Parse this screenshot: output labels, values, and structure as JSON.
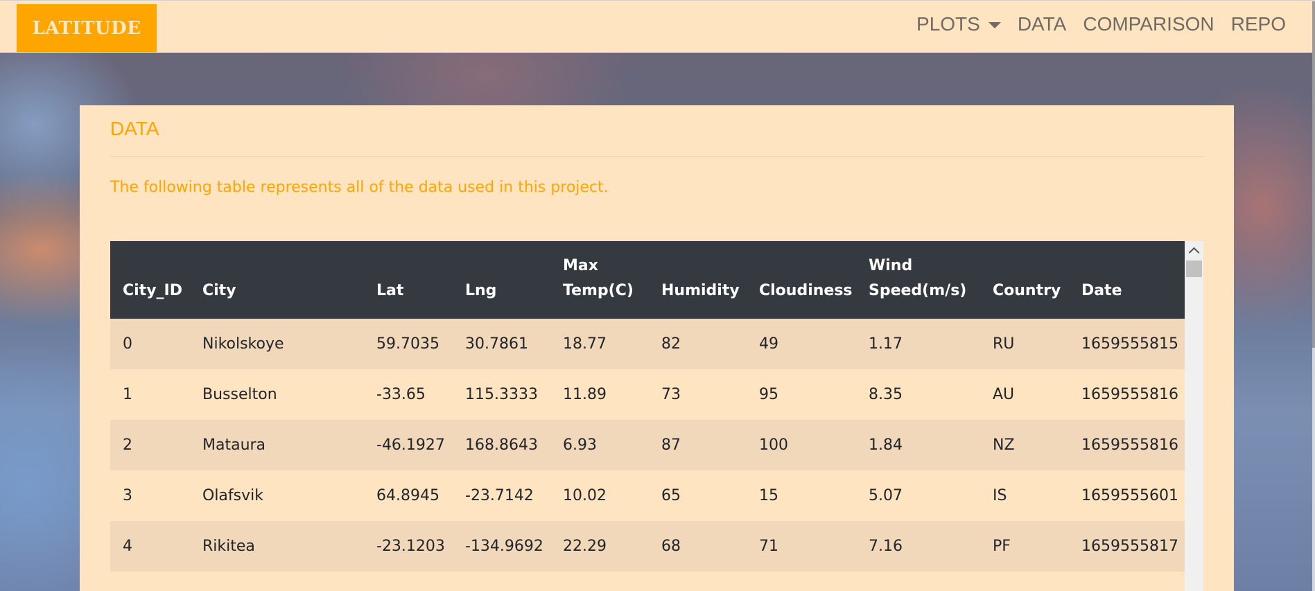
{
  "navbar": {
    "brand": "LATITUDE",
    "links": {
      "plots": "PLOTS",
      "data": "DATA",
      "comparison": "COMPARISON",
      "repo": "REPO"
    }
  },
  "card": {
    "title": "DATA",
    "description": "The following table represents all of the data used in this project."
  },
  "table": {
    "headers": {
      "city_id": "City_ID",
      "city": "City",
      "lat": "Lat",
      "lng": "Lng",
      "max_temp_1": "Max",
      "max_temp_2": "Temp(C)",
      "humidity": "Humidity",
      "cloudiness": "Cloudiness",
      "wind_1": "Wind",
      "wind_2": "Speed(m/s)",
      "country": "Country",
      "date": "Date"
    },
    "rows": [
      [
        "0",
        "Nikolskoye",
        "59.7035",
        "30.7861",
        "18.77",
        "82",
        "49",
        "1.17",
        "RU",
        "1659555815"
      ],
      [
        "1",
        "Busselton",
        "-33.65",
        "115.3333",
        "11.89",
        "73",
        "95",
        "8.35",
        "AU",
        "1659555816"
      ],
      [
        "2",
        "Mataura",
        "-46.1927",
        "168.8643",
        "6.93",
        "87",
        "100",
        "1.84",
        "NZ",
        "1659555816"
      ],
      [
        "3",
        "Olafsvik",
        "64.8945",
        "-23.7142",
        "10.02",
        "65",
        "15",
        "5.07",
        "IS",
        "1659555601"
      ],
      [
        "4",
        "Rikitea",
        "-23.1203",
        "-134.9692",
        "22.29",
        "68",
        "71",
        "7.16",
        "PF",
        "1659555817"
      ]
    ]
  },
  "colors": {
    "accent": "#ffa500",
    "navbar_bg": "#ffe4c1",
    "table_header_bg": "#343a40",
    "row_striped": "#f2d8bb"
  }
}
